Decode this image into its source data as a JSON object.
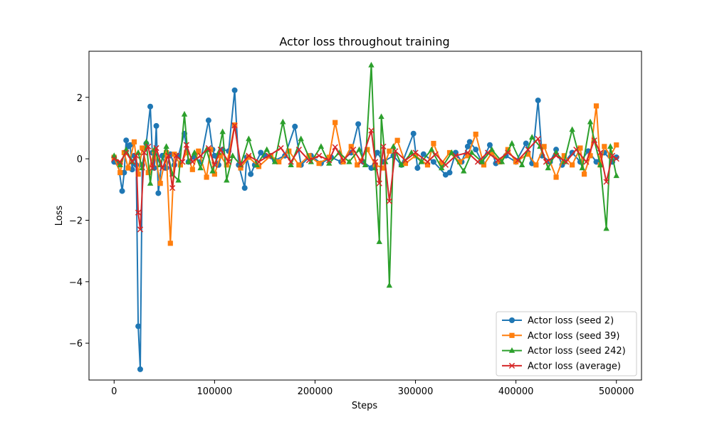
{
  "chart_data": {
    "type": "line",
    "title": "Actor loss throughout training",
    "xlabel": "Steps",
    "ylabel": "Loss",
    "xlim": [
      -25000,
      525000
    ],
    "ylim": [
      -7.2,
      3.5
    ],
    "x_ticks": [
      0,
      100000,
      200000,
      300000,
      400000,
      500000
    ],
    "x_tick_labels": [
      "0",
      "100000",
      "200000",
      "300000",
      "400000",
      "500000"
    ],
    "y_ticks": [
      -6,
      -4,
      -2,
      0,
      2
    ],
    "y_tick_labels": [
      "−6",
      "−4",
      "−2",
      "0",
      "2"
    ],
    "grid": false,
    "legend_position": "lower-right",
    "series": [
      {
        "name": "Actor loss (seed 2)",
        "color": "#1f77b4",
        "marker": "circle",
        "points": [
          [
            0,
            -0.1
          ],
          [
            4000,
            -0.15
          ],
          [
            8000,
            -1.05
          ],
          [
            10000,
            -0.45
          ],
          [
            12000,
            0.6
          ],
          [
            14000,
            0.4
          ],
          [
            16000,
            0.45
          ],
          [
            18000,
            -0.35
          ],
          [
            20000,
            0.1
          ],
          [
            22000,
            -0.2
          ],
          [
            24000,
            -5.45
          ],
          [
            26000,
            -6.85
          ],
          [
            28000,
            -0.2
          ],
          [
            32000,
            0.5
          ],
          [
            36000,
            1.7
          ],
          [
            38000,
            0.2
          ],
          [
            40000,
            -0.3
          ],
          [
            42000,
            1.07
          ],
          [
            44000,
            -1.12
          ],
          [
            48000,
            0.1
          ],
          [
            52000,
            -0.3
          ],
          [
            56000,
            0.15
          ],
          [
            60000,
            -0.2
          ],
          [
            64000,
            0.1
          ],
          [
            70000,
            0.82
          ],
          [
            74000,
            -0.1
          ],
          [
            80000,
            0.05
          ],
          [
            86000,
            -0.1
          ],
          [
            94000,
            1.25
          ],
          [
            98000,
            0.3
          ],
          [
            100000,
            0.1
          ],
          [
            104000,
            -0.2
          ],
          [
            108000,
            0.3
          ],
          [
            114000,
            0.25
          ],
          [
            120000,
            2.23
          ],
          [
            124000,
            -0.2
          ],
          [
            130000,
            -0.95
          ],
          [
            132000,
            0.05
          ],
          [
            136000,
            -0.5
          ],
          [
            140000,
            -0.2
          ],
          [
            146000,
            0.2
          ],
          [
            150000,
            0.1
          ],
          [
            160000,
            -0.05
          ],
          [
            170000,
            0.1
          ],
          [
            180000,
            1.05
          ],
          [
            186000,
            -0.2
          ],
          [
            196000,
            0.1
          ],
          [
            206000,
            -0.15
          ],
          [
            216000,
            0.05
          ],
          [
            226000,
            -0.1
          ],
          [
            236000,
            0.2
          ],
          [
            243000,
            1.13
          ],
          [
            248000,
            -0.1
          ],
          [
            256000,
            -0.3
          ],
          [
            262000,
            0.2
          ],
          [
            268000,
            -0.1
          ],
          [
            278000,
            0.1
          ],
          [
            286000,
            -0.2
          ],
          [
            298000,
            0.82
          ],
          [
            302000,
            -0.3
          ],
          [
            308000,
            0.15
          ],
          [
            318000,
            -0.1
          ],
          [
            330000,
            -0.52
          ],
          [
            334000,
            -0.45
          ],
          [
            340000,
            0.2
          ],
          [
            346000,
            -0.1
          ],
          [
            352000,
            0.4
          ],
          [
            354000,
            0.55
          ],
          [
            360000,
            0.3
          ],
          [
            366000,
            -0.1
          ],
          [
            374000,
            0.45
          ],
          [
            380000,
            -0.15
          ],
          [
            390000,
            0.1
          ],
          [
            400000,
            -0.1
          ],
          [
            410000,
            0.5
          ],
          [
            416000,
            -0.15
          ],
          [
            422000,
            1.9
          ],
          [
            426000,
            0.1
          ],
          [
            434000,
            -0.1
          ],
          [
            440000,
            0.3
          ],
          [
            446000,
            -0.2
          ],
          [
            456000,
            0.2
          ],
          [
            464000,
            -0.1
          ],
          [
            472000,
            0.25
          ],
          [
            480000,
            -0.1
          ],
          [
            488000,
            0.2
          ],
          [
            496000,
            -0.1
          ],
          [
            500000,
            0.05
          ]
        ]
      },
      {
        "name": "Actor loss (seed 39)",
        "color": "#ff7f0e",
        "marker": "square",
        "points": [
          [
            0,
            0.05
          ],
          [
            6000,
            -0.45
          ],
          [
            10000,
            0.2
          ],
          [
            14000,
            -0.3
          ],
          [
            20000,
            0.55
          ],
          [
            24000,
            -0.5
          ],
          [
            28000,
            0.35
          ],
          [
            34000,
            -0.45
          ],
          [
            40000,
            0.25
          ],
          [
            46000,
            -0.8
          ],
          [
            52000,
            0.2
          ],
          [
            56000,
            -2.75
          ],
          [
            60000,
            0.15
          ],
          [
            66000,
            -0.2
          ],
          [
            72000,
            0.2
          ],
          [
            78000,
            -0.35
          ],
          [
            84000,
            0.25
          ],
          [
            92000,
            -0.6
          ],
          [
            96000,
            0.3
          ],
          [
            100000,
            -0.5
          ],
          [
            106000,
            0.1
          ],
          [
            112000,
            -0.2
          ],
          [
            120000,
            1.1
          ],
          [
            126000,
            -0.3
          ],
          [
            134000,
            0.05
          ],
          [
            144000,
            -0.25
          ],
          [
            156000,
            0.1
          ],
          [
            164000,
            -0.1
          ],
          [
            174000,
            0.25
          ],
          [
            184000,
            -0.2
          ],
          [
            194000,
            0.1
          ],
          [
            204000,
            -0.15
          ],
          [
            214000,
            0.05
          ],
          [
            220000,
            1.18
          ],
          [
            228000,
            -0.1
          ],
          [
            236000,
            0.4
          ],
          [
            242000,
            -0.2
          ],
          [
            252000,
            0.3
          ],
          [
            260000,
            -0.2
          ],
          [
            268000,
            -0.3
          ],
          [
            274000,
            0.25
          ],
          [
            282000,
            0.6
          ],
          [
            290000,
            -0.15
          ],
          [
            300000,
            0.1
          ],
          [
            312000,
            -0.2
          ],
          [
            318000,
            0.5
          ],
          [
            326000,
            -0.15
          ],
          [
            334000,
            0.2
          ],
          [
            344000,
            -0.1
          ],
          [
            352000,
            0.1
          ],
          [
            360000,
            0.8
          ],
          [
            368000,
            -0.2
          ],
          [
            376000,
            0.2
          ],
          [
            384000,
            -0.1
          ],
          [
            392000,
            0.3
          ],
          [
            400000,
            -0.1
          ],
          [
            412000,
            0.15
          ],
          [
            420000,
            -0.2
          ],
          [
            428000,
            0.4
          ],
          [
            440000,
            -0.6
          ],
          [
            448000,
            0.1
          ],
          [
            456000,
            -0.2
          ],
          [
            464000,
            0.35
          ],
          [
            468000,
            -0.5
          ],
          [
            474000,
            0.1
          ],
          [
            480000,
            1.72
          ],
          [
            484000,
            -0.2
          ],
          [
            488000,
            0.4
          ],
          [
            494000,
            0.1
          ],
          [
            500000,
            0.45
          ]
        ]
      },
      {
        "name": "Actor loss (seed 242)",
        "color": "#2ca02c",
        "marker": "triangle",
        "points": [
          [
            0,
            0.1
          ],
          [
            6000,
            -0.2
          ],
          [
            12000,
            0.3
          ],
          [
            18000,
            -0.1
          ],
          [
            24000,
            0.2
          ],
          [
            28000,
            -0.3
          ],
          [
            32000,
            0.55
          ],
          [
            36000,
            -0.8
          ],
          [
            40000,
            0.3
          ],
          [
            46000,
            -0.2
          ],
          [
            52000,
            0.4
          ],
          [
            58000,
            -0.5
          ],
          [
            64000,
            -0.7
          ],
          [
            70000,
            1.45
          ],
          [
            74000,
            -0.1
          ],
          [
            80000,
            0.2
          ],
          [
            86000,
            -0.3
          ],
          [
            92000,
            0.3
          ],
          [
            98000,
            -0.4
          ],
          [
            104000,
            0.2
          ],
          [
            108000,
            0.88
          ],
          [
            112000,
            -0.7
          ],
          [
            118000,
            0.1
          ],
          [
            126000,
            -0.2
          ],
          [
            134000,
            0.65
          ],
          [
            142000,
            -0.2
          ],
          [
            152000,
            0.3
          ],
          [
            160000,
            -0.1
          ],
          [
            168000,
            1.2
          ],
          [
            176000,
            -0.2
          ],
          [
            186000,
            0.65
          ],
          [
            196000,
            -0.1
          ],
          [
            206000,
            0.4
          ],
          [
            214000,
            -0.15
          ],
          [
            224000,
            0.2
          ],
          [
            234000,
            -0.1
          ],
          [
            244000,
            0.3
          ],
          [
            250000,
            -0.2
          ],
          [
            256000,
            3.05
          ],
          [
            260000,
            -0.3
          ],
          [
            264000,
            -2.7
          ],
          [
            266000,
            1.37
          ],
          [
            270000,
            -0.1
          ],
          [
            274000,
            -4.12
          ],
          [
            278000,
            0.4
          ],
          [
            286000,
            -0.2
          ],
          [
            296000,
            0.2
          ],
          [
            306000,
            -0.1
          ],
          [
            316000,
            0.3
          ],
          [
            326000,
            -0.3
          ],
          [
            336000,
            0.2
          ],
          [
            348000,
            -0.4
          ],
          [
            356000,
            0.2
          ],
          [
            366000,
            -0.1
          ],
          [
            376000,
            0.3
          ],
          [
            386000,
            -0.1
          ],
          [
            396000,
            0.5
          ],
          [
            406000,
            -0.2
          ],
          [
            416000,
            0.7
          ],
          [
            424000,
            0.4
          ],
          [
            432000,
            -0.3
          ],
          [
            440000,
            0.2
          ],
          [
            448000,
            -0.1
          ],
          [
            456000,
            0.95
          ],
          [
            466000,
            -0.3
          ],
          [
            474000,
            1.2
          ],
          [
            478000,
            0.6
          ],
          [
            484000,
            -0.2
          ],
          [
            490000,
            -2.27
          ],
          [
            494000,
            0.4
          ],
          [
            500000,
            -0.55
          ]
        ]
      },
      {
        "name": "Actor loss (average)",
        "color": "#d62728",
        "marker": "x",
        "points": [
          [
            0,
            0.0
          ],
          [
            6000,
            -0.1
          ],
          [
            12000,
            0.2
          ],
          [
            18000,
            -0.1
          ],
          [
            22000,
            0.1
          ],
          [
            24000,
            -1.75
          ],
          [
            26000,
            -2.3
          ],
          [
            30000,
            0.2
          ],
          [
            34000,
            0.4
          ],
          [
            38000,
            -0.3
          ],
          [
            42000,
            0.35
          ],
          [
            48000,
            -0.3
          ],
          [
            54000,
            0.1
          ],
          [
            58000,
            -0.95
          ],
          [
            62000,
            0.1
          ],
          [
            68000,
            -0.1
          ],
          [
            72000,
            0.45
          ],
          [
            78000,
            -0.1
          ],
          [
            86000,
            0.1
          ],
          [
            94000,
            0.35
          ],
          [
            100000,
            -0.2
          ],
          [
            106000,
            0.3
          ],
          [
            114000,
            -0.1
          ],
          [
            120000,
            1.08
          ],
          [
            126000,
            -0.2
          ],
          [
            134000,
            0.1
          ],
          [
            144000,
            -0.1
          ],
          [
            154000,
            0.1
          ],
          [
            166000,
            0.35
          ],
          [
            176000,
            -0.1
          ],
          [
            184000,
            0.3
          ],
          [
            194000,
            -0.05
          ],
          [
            204000,
            0.1
          ],
          [
            214000,
            -0.05
          ],
          [
            220000,
            0.38
          ],
          [
            228000,
            -0.05
          ],
          [
            238000,
            0.3
          ],
          [
            246000,
            -0.1
          ],
          [
            256000,
            0.92
          ],
          [
            260000,
            -0.1
          ],
          [
            264000,
            -0.8
          ],
          [
            268000,
            0.4
          ],
          [
            274000,
            -1.38
          ],
          [
            280000,
            0.25
          ],
          [
            290000,
            -0.05
          ],
          [
            300000,
            0.2
          ],
          [
            312000,
            -0.1
          ],
          [
            320000,
            0.15
          ],
          [
            330000,
            -0.2
          ],
          [
            340000,
            0.1
          ],
          [
            352000,
            0.2
          ],
          [
            362000,
            -0.1
          ],
          [
            372000,
            0.2
          ],
          [
            382000,
            -0.05
          ],
          [
            392000,
            0.2
          ],
          [
            402000,
            -0.05
          ],
          [
            412000,
            0.3
          ],
          [
            422000,
            0.65
          ],
          [
            430000,
            -0.1
          ],
          [
            440000,
            0.1
          ],
          [
            450000,
            -0.1
          ],
          [
            460000,
            0.3
          ],
          [
            470000,
            -0.1
          ],
          [
            478000,
            0.6
          ],
          [
            484000,
            0.2
          ],
          [
            490000,
            -0.75
          ],
          [
            496000,
            0.1
          ],
          [
            500000,
            0.0
          ]
        ]
      }
    ]
  }
}
